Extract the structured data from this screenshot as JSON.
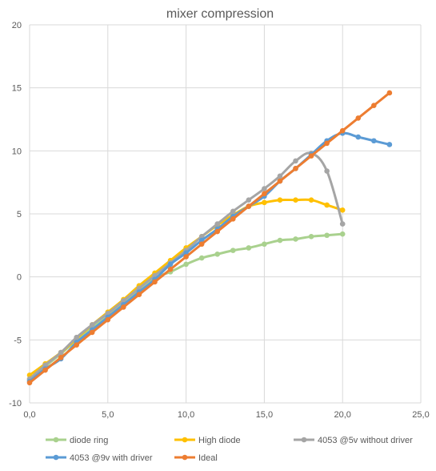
{
  "chart_data": {
    "type": "line",
    "title": "mixer compression",
    "xlabel": "",
    "ylabel": "",
    "xlim": [
      0,
      25
    ],
    "ylim": [
      -10,
      20
    ],
    "x_ticks": [
      "0,0",
      "5,0",
      "10,0",
      "15,0",
      "20,0",
      "25,0"
    ],
    "y_ticks": [
      "-10",
      "-5",
      "0",
      "5",
      "10",
      "15",
      "20"
    ],
    "grid": true,
    "legend_position": "bottom",
    "series": [
      {
        "name": "diode ring",
        "color": "#a9d18e",
        "x": [
          0,
          1,
          2,
          3,
          4,
          5,
          6,
          7,
          8,
          9,
          10,
          11,
          12,
          13,
          14,
          15,
          16,
          17,
          18,
          19,
          20
        ],
        "y": [
          -8.2,
          -7.1,
          -6.1,
          -5.0,
          -4.0,
          -3.0,
          -2.0,
          -1.1,
          -0.1,
          0.4,
          1.0,
          1.5,
          1.8,
          2.1,
          2.3,
          2.6,
          2.9,
          3.0,
          3.2,
          3.3,
          3.4
        ]
      },
      {
        "name": "High diode",
        "color": "#ffc000",
        "x": [
          0,
          1,
          2,
          3,
          4,
          5,
          6,
          7,
          8,
          9,
          10,
          11,
          12,
          13,
          14,
          15,
          16,
          17,
          18,
          19,
          20
        ],
        "y": [
          -7.8,
          -6.9,
          -6.0,
          -4.9,
          -3.8,
          -2.8,
          -1.8,
          -0.7,
          0.3,
          1.3,
          2.3,
          3.2,
          4.1,
          4.9,
          5.6,
          5.9,
          6.1,
          6.1,
          6.1,
          5.7,
          5.3
        ]
      },
      {
        "name": "4053 @5v without driver",
        "color": "#a5a5a5",
        "x": [
          0,
          1,
          2,
          3,
          4,
          5,
          6,
          7,
          8,
          9,
          10,
          11,
          12,
          13,
          14,
          15,
          16,
          17,
          18,
          19,
          20
        ],
        "y": [
          -8.1,
          -7.0,
          -6.0,
          -4.8,
          -3.8,
          -2.9,
          -1.9,
          -0.9,
          0.1,
          1.1,
          2.1,
          3.2,
          4.2,
          5.2,
          6.1,
          7.0,
          8.0,
          9.2,
          9.8,
          8.4,
          4.2
        ]
      },
      {
        "name": "4053 @9v with driver",
        "color": "#5b9bd5",
        "x": [
          0,
          1,
          2,
          3,
          4,
          5,
          6,
          7,
          8,
          9,
          10,
          11,
          12,
          13,
          14,
          15,
          16,
          17,
          18,
          19,
          20,
          21,
          22,
          23
        ],
        "y": [
          -8.3,
          -7.3,
          -6.5,
          -5.2,
          -4.2,
          -3.2,
          -2.2,
          -1.2,
          -0.2,
          1.0,
          1.9,
          2.9,
          3.8,
          4.8,
          5.6,
          6.4,
          7.6,
          8.6,
          9.7,
          10.8,
          11.4,
          11.1,
          10.8,
          10.5
        ]
      },
      {
        "name": "Ideal",
        "color": "#ed7d31",
        "x": [
          0,
          1,
          2,
          3,
          4,
          5,
          6,
          7,
          8,
          9,
          10,
          11,
          12,
          13,
          14,
          15,
          16,
          17,
          18,
          19,
          20,
          21,
          22,
          23
        ],
        "y": [
          -8.4,
          -7.4,
          -6.4,
          -5.4,
          -4.4,
          -3.4,
          -2.4,
          -1.4,
          -0.4,
          0.6,
          1.6,
          2.6,
          3.6,
          4.6,
          5.6,
          6.6,
          7.6,
          8.6,
          9.6,
          10.6,
          11.6,
          12.6,
          13.6,
          14.6
        ]
      }
    ]
  }
}
